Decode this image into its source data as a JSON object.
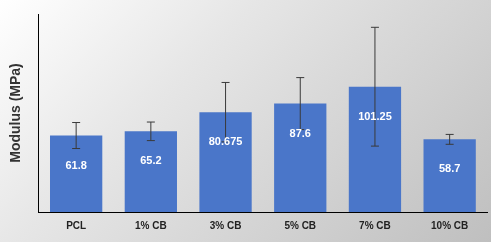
{
  "chart_data": {
    "type": "bar",
    "y_label": "Modulus (MPa)",
    "categories": [
      "PCL",
      "1% CB",
      "3% CB",
      "5% CB",
      "7% CB",
      "10% CB"
    ],
    "values": [
      61.8,
      65.2,
      80.675,
      87.6,
      101.25,
      58.7
    ],
    "errors": [
      10.5,
      7.5,
      24,
      21,
      48,
      4
    ],
    "color": "#4a76c9",
    "ylim": [
      0,
      160
    ],
    "grid": false,
    "data_labels": true,
    "tick_labels": "x"
  }
}
